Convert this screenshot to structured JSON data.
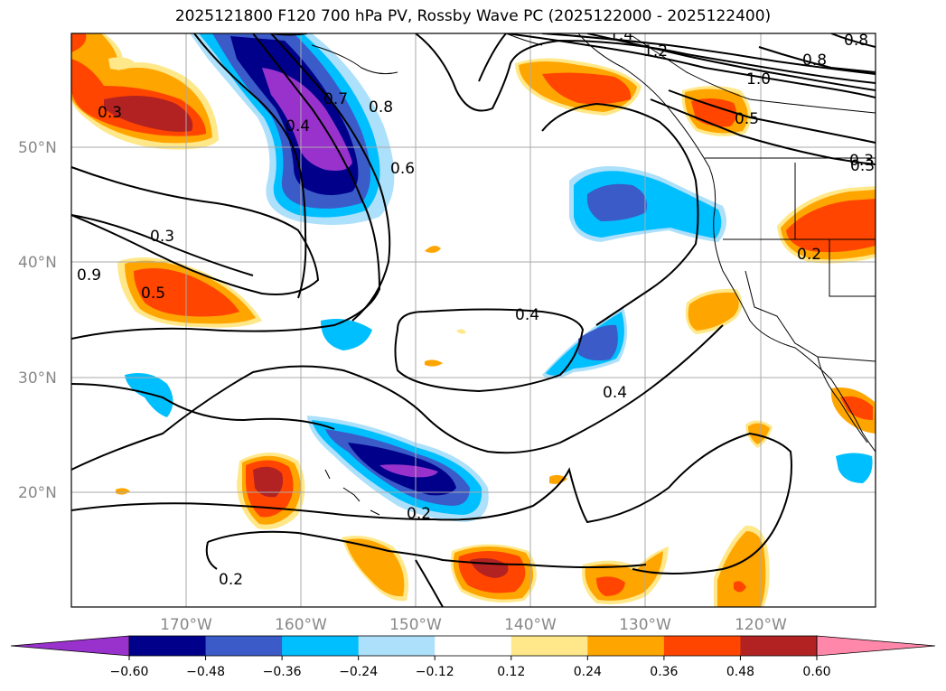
{
  "title": "2025121800 F120 700 hPa PV, Rossby Wave PC (2025122000 - 2025122400)",
  "map": {
    "lon_range": [
      -180,
      -110
    ],
    "lat_range": [
      10,
      60
    ],
    "lat_ticks": [
      {
        "value": 50,
        "label": "50°N"
      },
      {
        "value": 40,
        "label": "40°N"
      },
      {
        "value": 30,
        "label": "30°N"
      },
      {
        "value": 20,
        "label": "20°N"
      }
    ],
    "lon_ticks": [
      {
        "value": -170,
        "label": "170°W"
      },
      {
        "value": -160,
        "label": "160°W"
      },
      {
        "value": -150,
        "label": "150°W"
      },
      {
        "value": -140,
        "label": "140°W"
      },
      {
        "value": -130,
        "label": "130°W"
      },
      {
        "value": -120,
        "label": "120°W"
      }
    ],
    "grid": true
  },
  "contour_labels": [
    "1.4",
    "1.2",
    "1.0",
    "0.8",
    "0.5",
    "0.3",
    "0.8",
    "0.7",
    "0.4",
    "0.6",
    "0.8",
    "0.3",
    "0.3",
    "0.5",
    "0.9",
    "0.4",
    "0.4",
    "0.2",
    "0.2",
    "0.2",
    "0.3"
  ],
  "colorbar": {
    "ticks": [
      "−0.60",
      "−0.48",
      "−0.36",
      "−0.24",
      "−0.12",
      "0.12",
      "0.24",
      "0.36",
      "0.48",
      "0.60"
    ],
    "colors": [
      "#9932CC",
      "#00008B",
      "#3A5BC8",
      "#00BFFF",
      "#ADE0FA",
      "#FFFFFF",
      "#FFE88A",
      "#FFA500",
      "#FF4500",
      "#B22222",
      "#FF88AA"
    ]
  }
}
